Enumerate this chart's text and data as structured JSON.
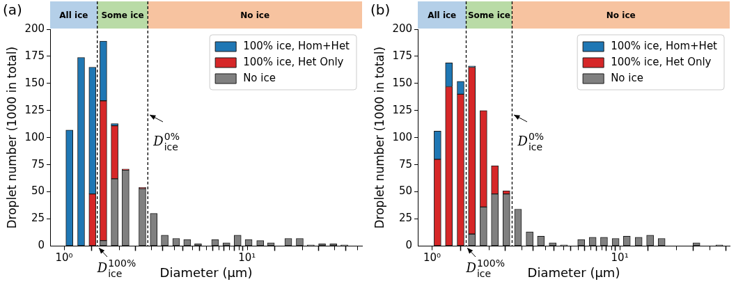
{
  "chart_data": [
    {
      "type": "bar",
      "title": "(a)",
      "xlabel": "Diameter (µm)",
      "ylabel": "Droplet number (1000 in total)",
      "stacked": true,
      "log": "x",
      "legend": "top right",
      "x": [
        1.07,
        1.24,
        1.43,
        1.64,
        1.89,
        2.17,
        2.68,
        3.09,
        3.55,
        4.1,
        4.71,
        5.4,
        6.69,
        7.72,
        8.88,
        10.2,
        11.8,
        13.5,
        16.8,
        19.4,
        22.3,
        25.7,
        29.6,
        34.0
      ],
      "series": [
        {
          "name": "No ice",
          "color": "#808080",
          "values": [
            0,
            0,
            0,
            5,
            62,
            70,
            53,
            30,
            10,
            7,
            6,
            2,
            6,
            3,
            10,
            6,
            5,
            3,
            7,
            7,
            1,
            2,
            2,
            1
          ]
        },
        {
          "name": "100% ice, Het Only",
          "color": "#d62728",
          "values": [
            0,
            0,
            48,
            129,
            49,
            1,
            1,
            0,
            0,
            0,
            0,
            0,
            0,
            0,
            0,
            0,
            0,
            0,
            0,
            0,
            0,
            0,
            0,
            0
          ]
        },
        {
          "name": "100% ice, Hom+Het",
          "color": "#1f77b4",
          "values": [
            107,
            174,
            117,
            55,
            2,
            0,
            0,
            0,
            0,
            0,
            0,
            0,
            0,
            0,
            0,
            0,
            0,
            0,
            0,
            0,
            0,
            0,
            0,
            0
          ]
        }
      ],
      "xlim": [
        0.84,
        42.5
      ],
      "xticks": [
        {
          "value": 1,
          "label": "10⁰"
        },
        {
          "value": 2,
          "label": null
        },
        {
          "value": 3,
          "label": null
        },
        {
          "value": 4,
          "label": null
        },
        {
          "value": 5,
          "label": null
        },
        {
          "value": 6,
          "label": null
        },
        {
          "value": 7,
          "label": null
        },
        {
          "value": 8,
          "label": null
        },
        {
          "value": 9,
          "label": null
        },
        {
          "value": 10,
          "label": "10¹"
        },
        {
          "value": 20,
          "label": null
        },
        {
          "value": 30,
          "label": null
        },
        {
          "value": 40,
          "label": null
        }
      ],
      "ylim": [
        0,
        200
      ],
      "yticks": [
        0,
        25,
        50,
        75,
        100,
        125,
        150,
        175,
        200
      ],
      "ref_lines": [
        {
          "axis": "x",
          "value": 1.52,
          "label": "D$_{ice}$$^{100%}$",
          "line_style": "dashed",
          "color": "#000000"
        },
        {
          "axis": "x",
          "value": 2.87,
          "label": "D$_{ice}$$^{0%}$",
          "line_style": "dashed",
          "color": "#000000"
        }
      ],
      "annotations": [
        "All ice",
        "Some ice",
        "No ice"
      ]
    },
    {
      "type": "bar",
      "title": "(b)",
      "xlabel": "Diameter (µm)",
      "ylabel": "Droplet number (1000 in total)",
      "stacked": true,
      "log": "x",
      "legend": "top right",
      "x": [
        1.07,
        1.23,
        1.42,
        1.63,
        1.88,
        2.16,
        2.49,
        2.87,
        3.31,
        3.8,
        4.39,
        5.04,
        6.23,
        7.17,
        8.24,
        9.5,
        10.9,
        12.6,
        14.5,
        16.7,
        25.6,
        33.9
      ],
      "series": [
        {
          "name": "No ice",
          "color": "#808080",
          "values": [
            0,
            0,
            0,
            11,
            36,
            48,
            48,
            34,
            13,
            9,
            3,
            1,
            6,
            8,
            8,
            7,
            9,
            8,
            10,
            7,
            3,
            1
          ]
        },
        {
          "name": "100% ice, Het Only",
          "color": "#d62728",
          "values": [
            80,
            147,
            140,
            154,
            89,
            26,
            3,
            0,
            0,
            0,
            0,
            0,
            0,
            0,
            0,
            0,
            0,
            0,
            0,
            0,
            0,
            0
          ]
        },
        {
          "name": "100% ice, Hom+Het",
          "color": "#1f77b4",
          "values": [
            26,
            22,
            12,
            1,
            0,
            0,
            0,
            0,
            0,
            0,
            0,
            0,
            0,
            0,
            0,
            0,
            0,
            0,
            0,
            0,
            0,
            0
          ]
        }
      ],
      "xlim": [
        0.84,
        38.5
      ],
      "xticks": [
        {
          "value": 1,
          "label": "10⁰"
        },
        {
          "value": 2,
          "label": null
        },
        {
          "value": 3,
          "label": null
        },
        {
          "value": 4,
          "label": null
        },
        {
          "value": 5,
          "label": null
        },
        {
          "value": 6,
          "label": null
        },
        {
          "value": 7,
          "label": null
        },
        {
          "value": 8,
          "label": null
        },
        {
          "value": 9,
          "label": null
        },
        {
          "value": 10,
          "label": "10¹"
        },
        {
          "value": 20,
          "label": null
        },
        {
          "value": 30,
          "label": null
        }
      ],
      "ylim": [
        0,
        200
      ],
      "yticks": [
        0,
        25,
        50,
        75,
        100,
        125,
        150,
        175,
        200
      ],
      "ref_lines": [
        {
          "axis": "x",
          "value": 1.52,
          "label": "D$_{ice}$$^{100%}$",
          "line_style": "dashed",
          "color": "#000000"
        },
        {
          "axis": "x",
          "value": 2.67,
          "label": "D$_{ice}$$^{0%}$",
          "line_style": "dashed",
          "color": "#000000"
        }
      ],
      "annotations": [
        "All ice",
        "Some ice",
        "No ice"
      ]
    }
  ]
}
